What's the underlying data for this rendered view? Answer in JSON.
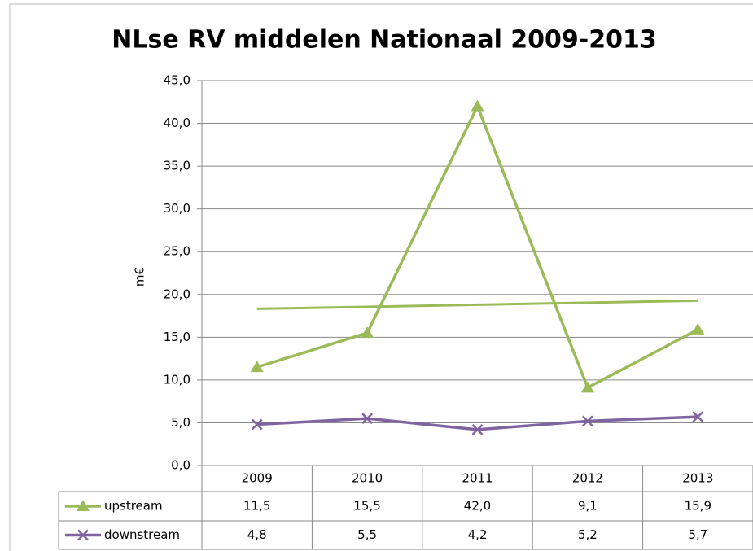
{
  "chart_data": {
    "type": "line",
    "title": "NLse RV middelen Nationaal 2009-2013",
    "y_label": "m€",
    "categories": [
      "2009",
      "2010",
      "2011",
      "2012",
      "2013"
    ],
    "series": [
      {
        "name": "upstream",
        "color": "#9bbb59",
        "marker": "triangle",
        "trendline": "linear",
        "values": [
          11.5,
          15.5,
          42.0,
          9.1,
          15.9
        ],
        "value_labels": [
          "11,5",
          "15,5",
          "42,0",
          "9,1",
          "15,9"
        ]
      },
      {
        "name": "downstream",
        "color": "#8064a2",
        "marker": "x",
        "values": [
          4.8,
          5.5,
          4.2,
          5.2,
          5.7
        ],
        "value_labels": [
          "4,8",
          "5,5",
          "4,2",
          "5,2",
          "5,7"
        ]
      }
    ],
    "ylim": [
      0,
      45
    ],
    "yticks": [
      {
        "value": 0,
        "label": "0,0"
      },
      {
        "value": 5,
        "label": "5,0"
      },
      {
        "value": 10,
        "label": "10,0"
      },
      {
        "value": 15,
        "label": "15,0"
      },
      {
        "value": 20,
        "label": "20,0"
      },
      {
        "value": 25,
        "label": "25,0"
      },
      {
        "value": 30,
        "label": "30,0"
      },
      {
        "value": 35,
        "label": "35,0"
      },
      {
        "value": 40,
        "label": "40,0"
      },
      {
        "value": 45,
        "label": "45,0"
      }
    ],
    "grid": true,
    "data_table": true
  }
}
